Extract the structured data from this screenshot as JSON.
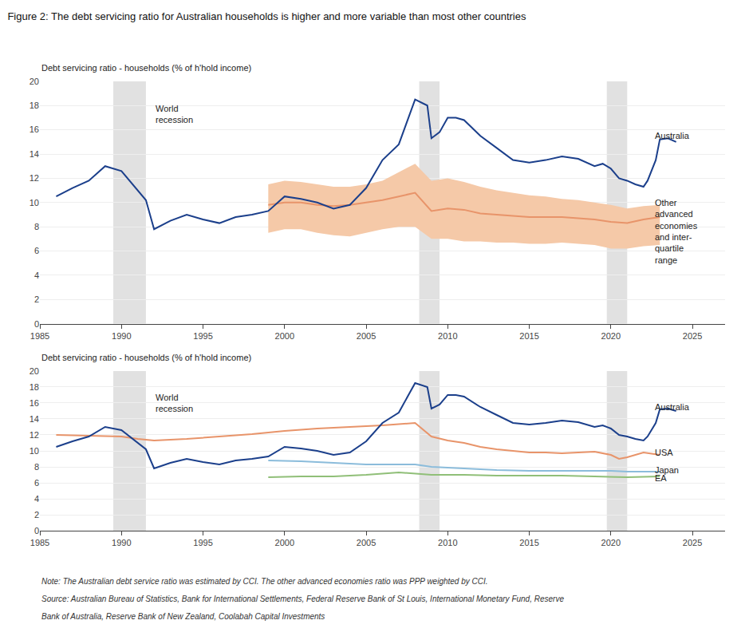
{
  "chart_data": [
    {
      "type": "line",
      "title": "Figure 2: The debt servicing ratio for Australian households is higher and more variable than most other countries",
      "ylabel": "Debt servicing ratio - households (% of h'hold income)",
      "xlim": [
        1985,
        2027
      ],
      "ylim": [
        0,
        20
      ],
      "xticks": [
        1985,
        1990,
        1995,
        2000,
        2005,
        2010,
        2015,
        2020,
        2025
      ],
      "yticks": [
        0,
        2,
        4,
        6,
        8,
        10,
        12,
        14,
        16,
        18,
        20
      ],
      "grid": true,
      "recession_bands": {
        "color": "#C8C8C8",
        "ranges": [
          [
            1989.5,
            1991.5
          ],
          [
            2008.25,
            2009.5
          ],
          [
            2019.75,
            2021.0
          ]
        ]
      },
      "series": [
        {
          "type": "band",
          "color": "#F5C9A8",
          "x": [
            1999,
            2000,
            2001,
            2002,
            2003,
            2004,
            2005,
            2006,
            2007,
            2008,
            2009,
            2010,
            2011,
            2012,
            2013,
            2014,
            2015,
            2016,
            2017,
            2018,
            2019,
            2020,
            2021,
            2022,
            2023
          ],
          "lower": [
            7.5,
            7.8,
            7.8,
            7.5,
            7.3,
            7.2,
            7.5,
            7.8,
            8.0,
            8.0,
            7.0,
            7.0,
            6.8,
            6.8,
            6.7,
            6.7,
            6.6,
            6.6,
            6.7,
            6.6,
            6.5,
            6.2,
            6.2,
            6.4,
            6.5
          ],
          "upper": [
            11.5,
            11.8,
            11.7,
            11.5,
            11.3,
            11.3,
            11.5,
            11.8,
            12.5,
            13.2,
            11.8,
            12.0,
            11.7,
            11.3,
            11.0,
            10.8,
            10.6,
            10.5,
            10.3,
            10.2,
            10.0,
            9.8,
            9.5,
            9.7,
            9.8
          ]
        },
        {
          "type": "line",
          "color": "#E8946A",
          "x": [
            1999,
            2000,
            2001,
            2002,
            2003,
            2004,
            2005,
            2006,
            2007,
            2008,
            2009,
            2010,
            2011,
            2012,
            2013,
            2014,
            2015,
            2016,
            2017,
            2018,
            2019,
            2020,
            2021,
            2022,
            2023
          ],
          "values": [
            9.8,
            10.0,
            10.0,
            9.8,
            9.7,
            9.8,
            10.0,
            10.2,
            10.5,
            10.8,
            9.3,
            9.5,
            9.4,
            9.1,
            9.0,
            8.9,
            8.8,
            8.8,
            8.8,
            8.7,
            8.6,
            8.4,
            8.3,
            8.6,
            8.8
          ]
        },
        {
          "type": "line",
          "color": "#1B3F8B",
          "x": [
            1986,
            1987,
            1988,
            1989,
            1990,
            1991,
            1991.5,
            1992,
            1993,
            1994,
            1995,
            1996,
            1997,
            1998,
            1999,
            2000,
            2001,
            2002,
            2003,
            2004,
            2005,
            2006,
            2007,
            2008,
            2008.75,
            2009,
            2009.5,
            2010,
            2010.5,
            2011,
            2012,
            2013,
            2014,
            2015,
            2016,
            2017,
            2018,
            2019,
            2019.5,
            2020,
            2020.5,
            2021,
            2021.5,
            2022,
            2022.25,
            2022.75,
            2023,
            2023.5,
            2024
          ],
          "values": [
            10.5,
            11.2,
            11.8,
            13.0,
            12.6,
            11.0,
            10.2,
            7.8,
            8.5,
            9.0,
            8.6,
            8.3,
            8.8,
            9.0,
            9.3,
            10.5,
            10.3,
            10.0,
            9.5,
            9.8,
            11.2,
            13.5,
            14.8,
            18.5,
            18.0,
            15.3,
            15.8,
            17.0,
            17.0,
            16.8,
            15.5,
            14.5,
            13.5,
            13.3,
            13.5,
            13.8,
            13.6,
            13.0,
            13.2,
            12.8,
            12.0,
            11.8,
            11.5,
            11.3,
            11.8,
            13.5,
            15.2,
            15.3,
            15.0
          ]
        }
      ],
      "annotations": [
        {
          "text": "World\nrecession",
          "x": 1992.0,
          "y": 18.3
        },
        {
          "text": "Australia",
          "x": 2022.6,
          "y": 15.5
        },
        {
          "text": "Other\nadvanced\neconomies\nand inter-\nquartile\nrange",
          "x": 2022.6,
          "y": 10.5
        }
      ]
    },
    {
      "type": "line",
      "ylabel": "Debt servicing ratio - households (% of h'hold income)",
      "xlim": [
        1985,
        2027
      ],
      "ylim": [
        0,
        20
      ],
      "xticks": [
        1985,
        1990,
        1995,
        2000,
        2005,
        2010,
        2015,
        2020,
        2025
      ],
      "yticks": [
        0,
        2,
        4,
        6,
        8,
        10,
        12,
        14,
        16,
        18,
        20
      ],
      "grid": true,
      "recession_bands": {
        "color": "#C8C8C8",
        "ranges": [
          [
            1989.5,
            1991.5
          ],
          [
            2008.25,
            2009.5
          ],
          [
            2019.75,
            2021.0
          ]
        ]
      },
      "series": [
        {
          "type": "line",
          "color": "#90BF78",
          "x": [
            1999,
            2001,
            2003,
            2005,
            2007,
            2009,
            2011,
            2013,
            2015,
            2017,
            2019,
            2021,
            2023
          ],
          "values": [
            6.7,
            6.8,
            6.8,
            7.0,
            7.3,
            7.0,
            7.0,
            6.9,
            6.9,
            6.9,
            6.8,
            6.7,
            6.8
          ]
        },
        {
          "type": "line",
          "color": "#8BBCDB",
          "x": [
            1999,
            2001,
            2003,
            2005,
            2007,
            2008,
            2009,
            2011,
            2013,
            2015,
            2017,
            2019,
            2020,
            2021,
            2022,
            2023
          ],
          "values": [
            8.8,
            8.7,
            8.5,
            8.3,
            8.3,
            8.3,
            8.0,
            7.8,
            7.6,
            7.5,
            7.5,
            7.5,
            7.5,
            7.4,
            7.4,
            7.4
          ]
        },
        {
          "type": "line",
          "color": "#E8946A",
          "x": [
            1986,
            1988,
            1990,
            1991,
            1992,
            1994,
            1996,
            1998,
            2000,
            2002,
            2004,
            2006,
            2008,
            2009,
            2010,
            2011,
            2012,
            2013,
            2014,
            2015,
            2016,
            2017,
            2018,
            2019,
            2020,
            2020.5,
            2021,
            2022,
            2023
          ],
          "values": [
            12.0,
            11.9,
            11.8,
            11.5,
            11.3,
            11.5,
            11.8,
            12.1,
            12.5,
            12.8,
            13.0,
            13.2,
            13.5,
            11.8,
            11.3,
            11.0,
            10.5,
            10.2,
            10.0,
            9.8,
            9.8,
            9.7,
            9.8,
            9.9,
            9.5,
            9.0,
            9.2,
            9.8,
            9.5
          ]
        },
        {
          "type": "line",
          "color": "#1B3F8B",
          "x": [
            1986,
            1987,
            1988,
            1989,
            1990,
            1991,
            1991.5,
            1992,
            1993,
            1994,
            1995,
            1996,
            1997,
            1998,
            1999,
            2000,
            2001,
            2002,
            2003,
            2004,
            2005,
            2006,
            2007,
            2008,
            2008.75,
            2009,
            2009.5,
            2010,
            2010.5,
            2011,
            2012,
            2013,
            2014,
            2015,
            2016,
            2017,
            2018,
            2019,
            2019.5,
            2020,
            2020.5,
            2021,
            2021.5,
            2022,
            2022.25,
            2022.75,
            2023,
            2023.5,
            2024
          ],
          "values": [
            10.5,
            11.2,
            11.8,
            13.0,
            12.6,
            11.0,
            10.2,
            7.8,
            8.5,
            9.0,
            8.6,
            8.3,
            8.8,
            9.0,
            9.3,
            10.5,
            10.3,
            10.0,
            9.5,
            9.8,
            11.2,
            13.5,
            14.8,
            18.5,
            18.0,
            15.3,
            15.8,
            17.0,
            17.0,
            16.8,
            15.5,
            14.5,
            13.5,
            13.3,
            13.5,
            13.8,
            13.6,
            13.0,
            13.2,
            12.8,
            12.0,
            11.8,
            11.5,
            11.3,
            11.8,
            13.5,
            15.2,
            15.3,
            15.0
          ]
        }
      ],
      "annotations": [
        {
          "text": "World\nrecession",
          "x": 1992.0,
          "y": 17.5
        },
        {
          "text": "Australia",
          "x": 2022.6,
          "y": 15.5
        },
        {
          "text": "USA",
          "x": 2022.6,
          "y": 9.8
        },
        {
          "text": "Japan",
          "x": 2022.6,
          "y": 7.6
        },
        {
          "text": "EA",
          "x": 2022.6,
          "y": 6.6
        }
      ],
      "notes": [
        "Note: The Australian debt service ratio was estimated by CCI. The other advanced economies ratio was PPP weighted by CCI.",
        "Source: Australian Bureau of Statistics, Bank for International Settlements, Federal Reserve Bank of St Louis, International Monetary Fund, Reserve",
        "Bank of Australia, Reserve Bank of New Zealand, Coolabah Capital Investments"
      ]
    }
  ]
}
